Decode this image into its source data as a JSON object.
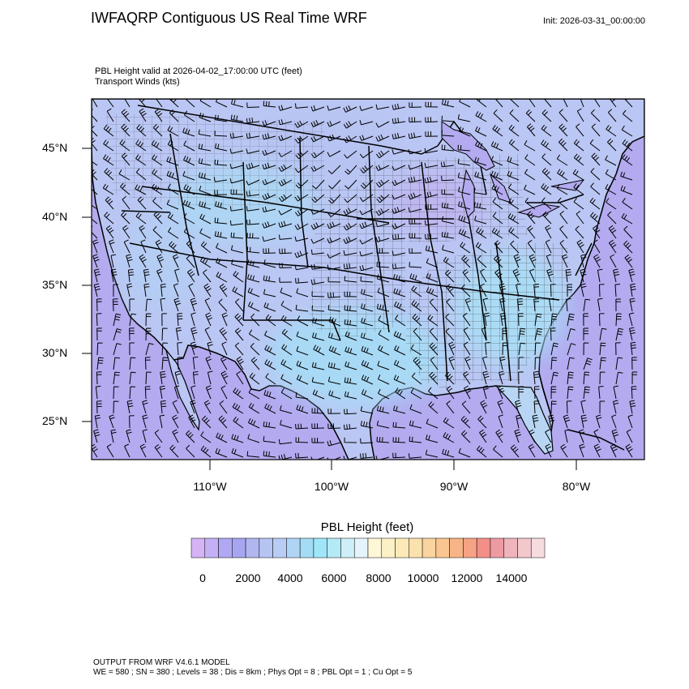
{
  "header": {
    "title": "IWFAQRP Contiguous US Real Time WRF",
    "init": "Init: 2026-03-31_00:00:00"
  },
  "field": {
    "line1": "PBL Height valid at 2026-04-02_17:00:00 UTC   (feet)",
    "line2": "Transport Winds   (kts)"
  },
  "map": {
    "lat_labels": [
      "45°N",
      "40°N",
      "35°N",
      "30°N",
      "25°N"
    ],
    "lon_labels": [
      "110°W",
      "100°W",
      "90°W",
      "80°W"
    ],
    "colors": {
      "ocean": "#b3aaf0",
      "land_low": "#b8c8f4",
      "land_mid": "#aee0f5",
      "border": "#000000"
    }
  },
  "colorbar": {
    "title": "PBL Height  (feet)",
    "tick_labels": [
      "0",
      "2000",
      "4000",
      "6000",
      "8000",
      "10000",
      "12000",
      "14000"
    ],
    "colors": [
      "#d6b3f5",
      "#c4b0f5",
      "#b0a8f2",
      "#a6a6f0",
      "#b0b6f0",
      "#b6c4f2",
      "#b8ccf4",
      "#b0d4f6",
      "#a4dcf6",
      "#9ee6f8",
      "#b4eaf6",
      "#cdeff8",
      "#e4f4fa",
      "#fdf7d8",
      "#fcf1c6",
      "#fbeab8",
      "#fbe1ae",
      "#fad49f",
      "#f9c590",
      "#f7b486",
      "#f6a284",
      "#f48f88",
      "#ee9aa2",
      "#efb4bc",
      "#f3c8cd",
      "#f7dcdf"
    ]
  },
  "footer": {
    "line1": "OUTPUT FROM WRF V4.6.1 MODEL",
    "line2": "WE = 580 ; SN = 380 ; Levels = 38 ; Dis = 8km ; Phys Opt = 8 ; PBL Opt = 1 ; Cu Opt = 5"
  }
}
